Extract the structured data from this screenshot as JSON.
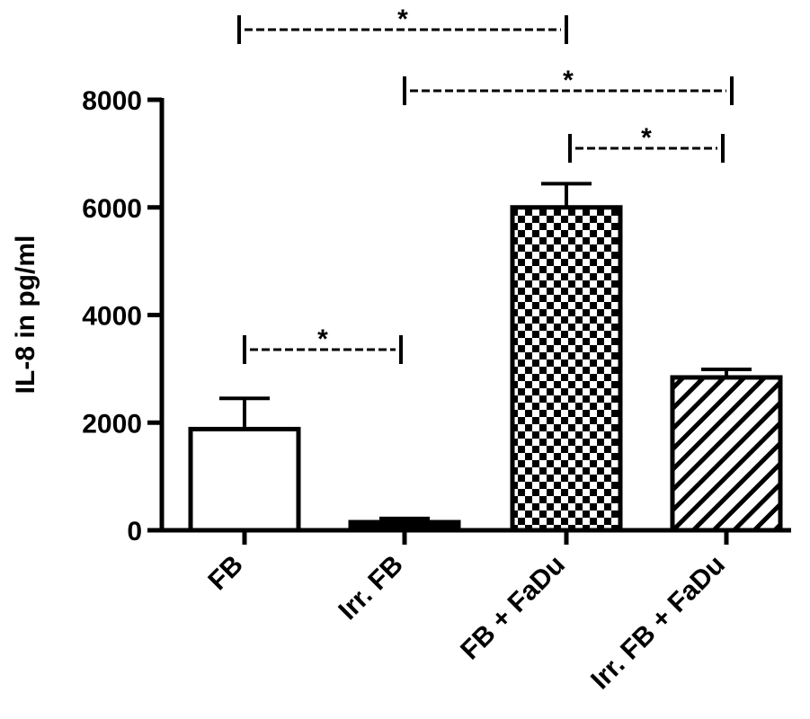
{
  "chart_data": {
    "type": "bar",
    "y_label": "IL-8 in pg/ml",
    "categories": [
      "FB",
      "Irr. FB",
      "FB + FaDu",
      "Irr. FB + FaDu"
    ],
    "values": [
      1880,
      150,
      6000,
      2840
    ],
    "errors": [
      570,
      70,
      440,
      150
    ],
    "patterns": [
      "none",
      "solid",
      "checker",
      "hatch"
    ],
    "color": "#000000",
    "ylim": [
      0,
      8000
    ],
    "yticks": [
      0,
      2000,
      4000,
      6000,
      8000
    ],
    "significance": [
      {
        "pair": [
          0,
          2
        ],
        "label": "*"
      },
      {
        "pair": [
          1,
          3
        ],
        "label": "*"
      },
      {
        "pair": [
          2,
          3
        ],
        "label": "*"
      },
      {
        "pair": [
          0,
          1
        ],
        "label": "*"
      }
    ]
  }
}
